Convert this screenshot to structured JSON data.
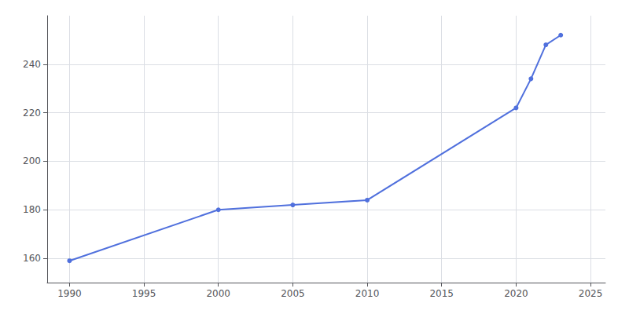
{
  "chart_data": {
    "type": "line",
    "x": [
      1990,
      2000,
      2005,
      2010,
      2020,
      2021,
      2022,
      2023
    ],
    "values": [
      159,
      180,
      182,
      184,
      222,
      234,
      248,
      252
    ],
    "xlim": [
      1988.5,
      2026
    ],
    "ylim": [
      150,
      260
    ],
    "xticks": [
      1990,
      1995,
      2000,
      2005,
      2010,
      2015,
      2020,
      2025
    ],
    "yticks": [
      160,
      180,
      200,
      220,
      240
    ],
    "grid": true,
    "marker": "circle"
  }
}
